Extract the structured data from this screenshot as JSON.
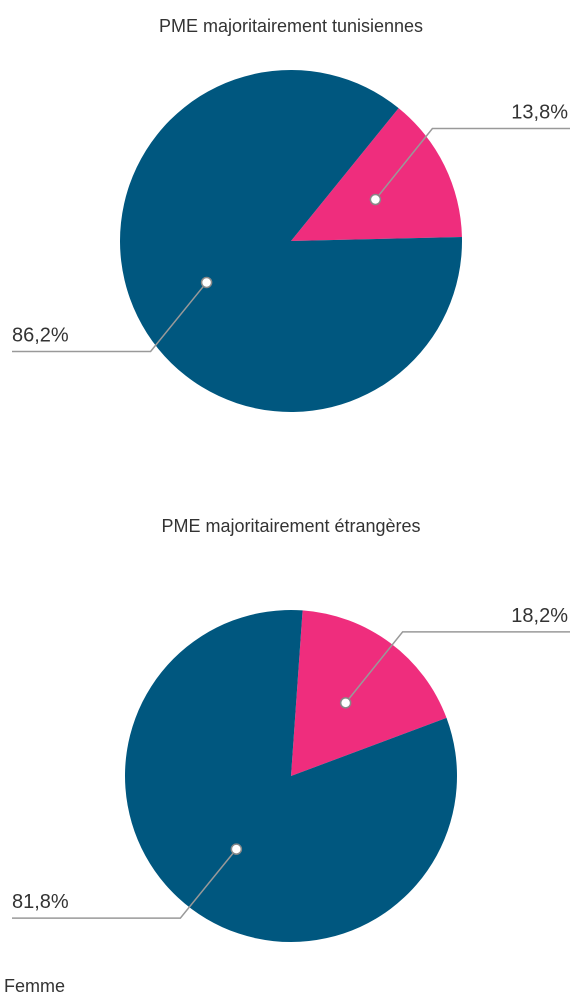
{
  "chart_data": [
    {
      "type": "pie",
      "title": "PME majoritairement tunisiennes",
      "values": [
        13.8,
        86.2
      ],
      "value_labels": [
        "13,8%",
        "86,2%"
      ],
      "colors": [
        "#ef2d7d",
        "#00577f"
      ]
    },
    {
      "type": "pie",
      "title": "PME majoritairement étrangères",
      "values": [
        18.2,
        81.8
      ],
      "value_labels": [
        "18,2%",
        "81,8%"
      ],
      "colors": [
        "#ef2d7d",
        "#00577f"
      ]
    }
  ],
  "legend": {
    "labels": [
      "Femme"
    ]
  }
}
